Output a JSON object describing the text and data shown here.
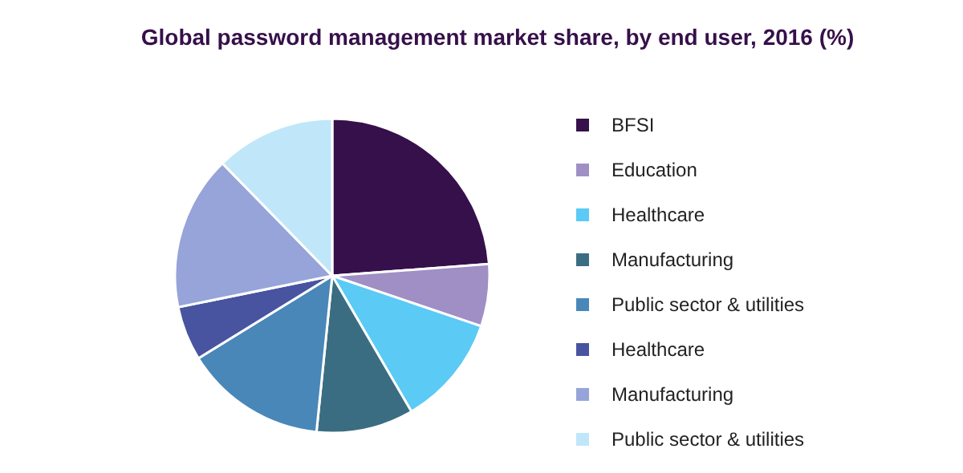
{
  "chart_data": {
    "type": "pie",
    "title": "Global password management market share, by end user, 2016 (%)",
    "categories": [
      "BFSI",
      "Education",
      "Healthcare",
      "Manufacturing",
      "Public sector & utilities",
      "Healthcare",
      "Manufacturing",
      "Public sector & utilities"
    ],
    "values": [
      23.8,
      6.4,
      11.4,
      10,
      14.6,
      5.6,
      15.9,
      12.3
    ],
    "colors": [
      "#36104a",
      "#a08fc4",
      "#5bcaf4",
      "#3b6d82",
      "#4a87b9",
      "#4854a0",
      "#96a4da",
      "#bfe7f9"
    ],
    "legend": "right"
  }
}
